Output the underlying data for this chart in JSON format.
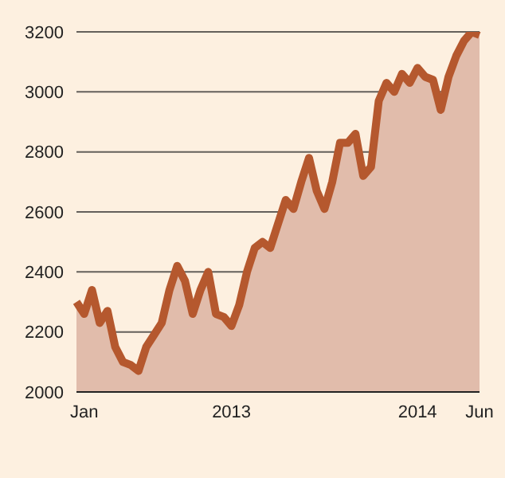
{
  "chart_data": {
    "type": "area",
    "categories": [
      null,
      "Jan",
      null,
      null,
      null,
      null,
      null,
      null,
      null,
      null,
      null,
      null,
      null,
      null,
      null,
      null,
      null,
      null,
      null,
      null,
      "2013",
      null,
      null,
      null,
      null,
      null,
      null,
      null,
      null,
      null,
      null,
      null,
      null,
      null,
      null,
      null,
      null,
      null,
      null,
      null,
      null,
      null,
      null,
      null,
      "2014",
      null,
      null,
      null,
      null,
      null,
      null,
      null,
      "Jun"
    ],
    "series": [
      {
        "color": "#b5582e",
        "values": [
          2300,
          2260,
          2340,
          2230,
          2270,
          2150,
          2100,
          2090,
          2070,
          2150,
          2190,
          2230,
          2340,
          2420,
          2370,
          2260,
          2340,
          2400,
          2260,
          2250,
          2220,
          2290,
          2400,
          2480,
          2500,
          2480,
          2560,
          2640,
          2610,
          2700,
          2780,
          2670,
          2610,
          2700,
          2830,
          2830,
          2860,
          2720,
          2750,
          2970,
          3030,
          3000,
          3060,
          3030,
          3080,
          3050,
          3040,
          2940,
          3050,
          3120,
          3170,
          3200,
          3190
        ]
      }
    ],
    "ylim": [
      2000,
      3200
    ],
    "yticks": [
      2000,
      2200,
      2400,
      2600,
      2800,
      3000,
      3200
    ],
    "grid": "y"
  }
}
